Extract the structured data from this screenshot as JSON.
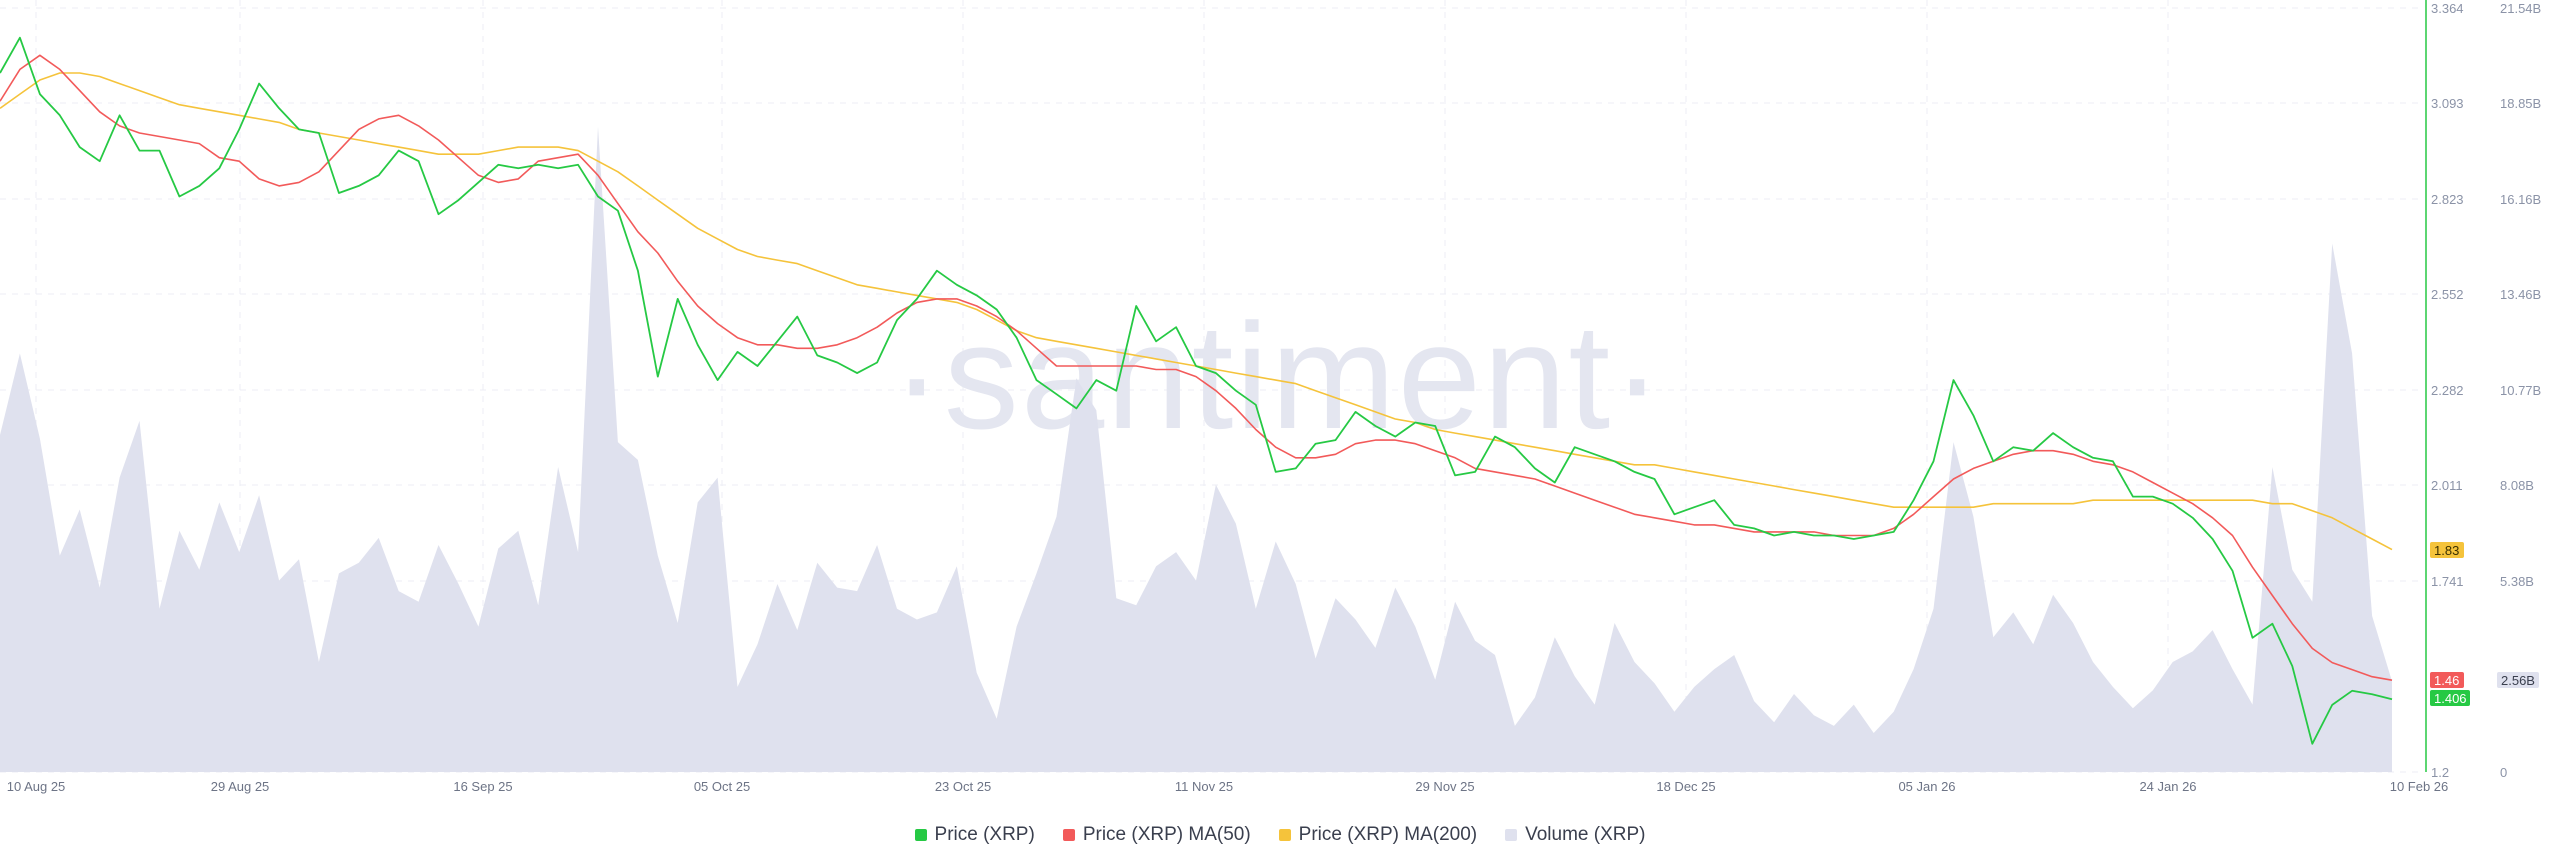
{
  "watermark": "·santiment·",
  "colors": {
    "price": "#26c944",
    "ma50": "#f25a5a",
    "ma200": "#f5c33b",
    "volume": "#dfe1ee",
    "grid": "#eceef4",
    "axis": "#26c944"
  },
  "legend": [
    {
      "label": "Price (XRP)",
      "color": "#26c944"
    },
    {
      "label": "Price (XRP) MA(50)",
      "color": "#f25a5a"
    },
    {
      "label": "Price (XRP) MA(200)",
      "color": "#f5c33b"
    },
    {
      "label": "Volume (XRP)",
      "color": "#dfe1ee"
    }
  ],
  "chart_data": {
    "type": "line",
    "x_ticks": [
      "10 Aug 25",
      "29 Aug 25",
      "16 Sep 25",
      "05 Oct 25",
      "23 Oct 25",
      "11 Nov 25",
      "29 Nov 25",
      "18 Dec 25",
      "05 Jan 26",
      "24 Jan 26",
      "10 Feb 26"
    ],
    "price_axis": {
      "ticks": [
        "3.364",
        "3.093",
        "2.823",
        "2.552",
        "2.282",
        "2.011",
        "1.741",
        "1.2"
      ],
      "range": [
        1.2,
        3.364
      ]
    },
    "volume_axis": {
      "ticks": [
        "21.54B",
        "18.85B",
        "16.16B",
        "13.46B",
        "10.77B",
        "8.08B",
        "5.38B",
        "0"
      ],
      "range": [
        0,
        21.54
      ]
    },
    "value_labels": {
      "ma200": "1.83",
      "ma50": "1.46",
      "price": "1.406",
      "volume": "2.56B"
    },
    "series": [
      {
        "name": "Price (XRP)",
        "axis": "price",
        "values": [
          3.18,
          3.28,
          3.12,
          3.06,
          2.97,
          2.93,
          3.06,
          2.96,
          2.96,
          2.83,
          2.86,
          2.91,
          3.02,
          3.15,
          3.08,
          3.02,
          3.01,
          2.84,
          2.86,
          2.89,
          2.96,
          2.93,
          2.78,
          2.82,
          2.87,
          2.92,
          2.91,
          2.92,
          2.91,
          2.92,
          2.83,
          2.79,
          2.62,
          2.32,
          2.54,
          2.41,
          2.31,
          2.39,
          2.35,
          2.42,
          2.49,
          2.38,
          2.36,
          2.33,
          2.36,
          2.48,
          2.54,
          2.62,
          2.58,
          2.55,
          2.51,
          2.43,
          2.31,
          2.27,
          2.23,
          2.31,
          2.28,
          2.52,
          2.42,
          2.46,
          2.35,
          2.33,
          2.28,
          2.24,
          2.05,
          2.06,
          2.13,
          2.14,
          2.22,
          2.18,
          2.15,
          2.19,
          2.18,
          2.04,
          2.05,
          2.15,
          2.12,
          2.06,
          2.02,
          2.12,
          2.1,
          2.08,
          2.05,
          2.03,
          1.93,
          1.95,
          1.97,
          1.9,
          1.89,
          1.87,
          1.88,
          1.87,
          1.87,
          1.86,
          1.87,
          1.88,
          1.97,
          2.08,
          2.31,
          2.21,
          2.08,
          2.12,
          2.11,
          2.16,
          2.12,
          2.09,
          2.08,
          1.98,
          1.98,
          1.96,
          1.92,
          1.86,
          1.77,
          1.58,
          1.62,
          1.5,
          1.28,
          1.39,
          1.43,
          1.42,
          1.406
        ]
      },
      {
        "name": "Price (XRP) MA(50)",
        "axis": "price",
        "values": [
          3.1,
          3.19,
          3.23,
          3.19,
          3.13,
          3.07,
          3.03,
          3.01,
          3.0,
          2.99,
          2.98,
          2.94,
          2.93,
          2.88,
          2.86,
          2.87,
          2.9,
          2.96,
          3.02,
          3.05,
          3.06,
          3.03,
          2.99,
          2.94,
          2.89,
          2.87,
          2.88,
          2.93,
          2.94,
          2.95,
          2.89,
          2.81,
          2.73,
          2.67,
          2.59,
          2.52,
          2.47,
          2.43,
          2.41,
          2.41,
          2.4,
          2.4,
          2.41,
          2.43,
          2.46,
          2.5,
          2.53,
          2.54,
          2.54,
          2.52,
          2.49,
          2.45,
          2.4,
          2.35,
          2.35,
          2.35,
          2.35,
          2.35,
          2.34,
          2.34,
          2.32,
          2.28,
          2.23,
          2.17,
          2.12,
          2.09,
          2.09,
          2.1,
          2.13,
          2.14,
          2.14,
          2.13,
          2.11,
          2.09,
          2.06,
          2.05,
          2.04,
          2.03,
          2.01,
          1.99,
          1.97,
          1.95,
          1.93,
          1.92,
          1.91,
          1.9,
          1.9,
          1.89,
          1.88,
          1.88,
          1.88,
          1.88,
          1.87,
          1.87,
          1.87,
          1.89,
          1.93,
          1.98,
          2.03,
          2.06,
          2.08,
          2.1,
          2.11,
          2.11,
          2.1,
          2.08,
          2.07,
          2.05,
          2.02,
          1.99,
          1.96,
          1.92,
          1.87,
          1.78,
          1.7,
          1.62,
          1.55,
          1.51,
          1.49,
          1.47,
          1.46
        ]
      },
      {
        "name": "Price (XRP) MA(200)",
        "axis": "price",
        "values": [
          3.08,
          3.12,
          3.16,
          3.18,
          3.18,
          3.17,
          3.15,
          3.13,
          3.11,
          3.09,
          3.08,
          3.07,
          3.06,
          3.05,
          3.04,
          3.02,
          3.01,
          3.0,
          2.99,
          2.98,
          2.97,
          2.96,
          2.95,
          2.95,
          2.95,
          2.96,
          2.97,
          2.97,
          2.97,
          2.96,
          2.93,
          2.9,
          2.86,
          2.82,
          2.78,
          2.74,
          2.71,
          2.68,
          2.66,
          2.65,
          2.64,
          2.62,
          2.6,
          2.58,
          2.57,
          2.56,
          2.55,
          2.54,
          2.53,
          2.51,
          2.48,
          2.45,
          2.43,
          2.42,
          2.41,
          2.4,
          2.39,
          2.38,
          2.37,
          2.36,
          2.35,
          2.34,
          2.33,
          2.32,
          2.31,
          2.3,
          2.28,
          2.26,
          2.24,
          2.22,
          2.2,
          2.19,
          2.17,
          2.16,
          2.15,
          2.14,
          2.13,
          2.12,
          2.11,
          2.1,
          2.09,
          2.08,
          2.07,
          2.07,
          2.06,
          2.05,
          2.04,
          2.03,
          2.02,
          2.01,
          2.0,
          1.99,
          1.98,
          1.97,
          1.96,
          1.95,
          1.95,
          1.95,
          1.95,
          1.95,
          1.96,
          1.96,
          1.96,
          1.96,
          1.96,
          1.97,
          1.97,
          1.97,
          1.97,
          1.97,
          1.97,
          1.97,
          1.97,
          1.97,
          1.96,
          1.96,
          1.94,
          1.92,
          1.89,
          1.86,
          1.83
        ]
      },
      {
        "name": "Volume (XRP)",
        "axis": "volume",
        "values": [
          9.5,
          11.8,
          9.4,
          6.1,
          7.4,
          5.2,
          8.3,
          9.9,
          4.6,
          6.8,
          5.7,
          7.6,
          6.2,
          7.8,
          5.4,
          6.0,
          3.1,
          5.6,
          5.9,
          6.6,
          5.1,
          4.8,
          6.4,
          5.3,
          4.1,
          6.3,
          6.8,
          4.7,
          8.6,
          6.2,
          18.2,
          9.3,
          8.8,
          6.1,
          4.2,
          7.6,
          8.3,
          2.4,
          3.6,
          5.3,
          4.0,
          5.9,
          5.2,
          5.1,
          6.4,
          4.6,
          4.3,
          4.5,
          5.8,
          2.8,
          1.5,
          4.1,
          5.6,
          7.2,
          11.1,
          10.2,
          4.9,
          4.7,
          5.8,
          6.2,
          5.4,
          8.1,
          7.0,
          4.6,
          6.5,
          5.3,
          3.2,
          4.9,
          4.3,
          3.5,
          5.2,
          4.1,
          2.6,
          4.8,
          3.7,
          3.3,
          1.3,
          2.1,
          3.8,
          2.7,
          1.9,
          4.2,
          3.1,
          2.5,
          1.7,
          2.4,
          2.9,
          3.3,
          2.0,
          1.4,
          2.2,
          1.6,
          1.3,
          1.9,
          1.1,
          1.7,
          2.9,
          4.6,
          9.3,
          7.2,
          3.8,
          4.5,
          3.6,
          5.0,
          4.2,
          3.1,
          2.4,
          1.8,
          2.3,
          3.1,
          3.4,
          4.0,
          2.9,
          1.9,
          8.6,
          5.7,
          4.8,
          14.9,
          11.8,
          4.4,
          2.56
        ]
      }
    ]
  }
}
